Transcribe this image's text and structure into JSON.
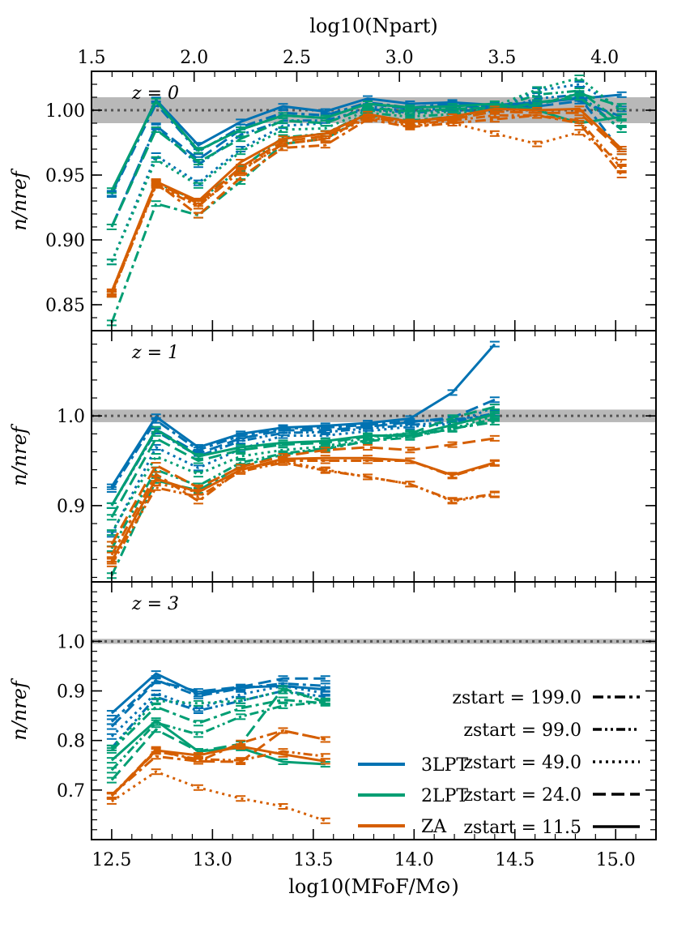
{
  "chart_data": {
    "type": "line",
    "top_axis": {
      "label": "log10(Npart)",
      "ticks": [
        "1.5",
        "2.0",
        "2.5",
        "3.0",
        "3.5",
        "4.0"
      ],
      "tick_values": [
        1.5,
        2.0,
        2.5,
        3.0,
        3.5,
        4.0
      ],
      "range": [
        1.5,
        4.25
      ]
    },
    "xlabel": "log10(MFoF/M⊙)",
    "xlim": [
      12.4,
      15.2
    ],
    "x_ticks": [
      "12.5",
      "13.0",
      "13.5",
      "14.0",
      "14.5",
      "15.0"
    ],
    "x_tick_values": [
      12.5,
      13.0,
      13.5,
      14.0,
      14.5,
      15.0
    ],
    "x": [
      12.5,
      12.72,
      12.93,
      13.14,
      13.35,
      13.56,
      13.77,
      13.98,
      14.19,
      14.4,
      14.61,
      14.82,
      15.03
    ],
    "reference_line": 1.0,
    "colors": {
      "3LPT": "#0072B2",
      "2LPT": "#009E73",
      "ZA": "#D55E00"
    },
    "panels": [
      {
        "label": "z = 0",
        "ylabel": "n/nref",
        "ylim": [
          0.83,
          1.03
        ],
        "yticks": [
          "0.85",
          "0.90",
          "0.95",
          "1.00"
        ],
        "ytick_values": [
          0.85,
          0.9,
          0.95,
          1.0
        ],
        "band": [
          0.99,
          1.01
        ],
        "series": [
          {
            "group": "3LPT",
            "zstart": "11.5",
            "values": [
              0.936,
              1.008,
              0.973,
              0.991,
              1.003,
              0.999,
              1.009,
              1.005,
              1.006,
              1.004,
              1.006,
              1.009,
              1.012
            ]
          },
          {
            "group": "3LPT",
            "zstart": "24.0",
            "values": [
              0.91,
              0.988,
              0.962,
              0.985,
              0.996,
              0.994,
              1.005,
              1.001,
              1.004,
              1.001,
              1.003,
              1.007,
              0.995
            ]
          },
          {
            "group": "3LPT",
            "zstart": "49.0",
            "values": [
              0.883,
              0.965,
              0.944,
              0.97,
              0.988,
              0.99,
              1.003,
              0.999,
              1.002,
              1.0,
              1.015,
              1.02,
              1.001
            ]
          },
          {
            "group": "3LPT",
            "zstart": "99.0",
            "values": [
              0.91,
              0.987,
              0.958,
              0.981,
              0.992,
              0.992,
              1.001,
              0.998,
              1.0,
              0.999,
              1.009,
              1.012,
              0.985
            ]
          },
          {
            "group": "3LPT",
            "zstart": "199.0",
            "values": [
              0.935,
              1.005,
              0.968,
              0.987,
              0.998,
              0.996,
              1.006,
              1.002,
              1.005,
              1.002,
              1.005,
              1.01,
              0.968
            ]
          },
          {
            "group": "2LPT",
            "zstart": "11.5",
            "values": [
              0.938,
              1.007,
              0.969,
              0.985,
              0.996,
              0.994,
              1.005,
              1.002,
              1.003,
              1.005,
              1.0,
              0.99,
              0.995
            ]
          },
          {
            "group": "2LPT",
            "zstart": "24.0",
            "values": [
              0.91,
              0.985,
              0.96,
              0.978,
              0.992,
              0.99,
              1.002,
              0.999,
              1.001,
              1.002,
              1.004,
              1.013,
              1.003
            ]
          },
          {
            "group": "2LPT",
            "zstart": "49.0",
            "values": [
              0.883,
              0.962,
              0.942,
              0.968,
              0.985,
              0.986,
              1.0,
              0.997,
              0.999,
              1.003,
              1.016,
              1.025,
              0.999
            ]
          },
          {
            "group": "2LPT",
            "zstart": "99.0",
            "values": [
              0.858,
              0.944,
              0.93,
              0.955,
              0.979,
              0.982,
              0.998,
              0.995,
              0.997,
              1.001,
              1.012,
              1.015,
              0.99
            ]
          },
          {
            "group": "2LPT",
            "zstart": "199.0",
            "values": [
              0.836,
              0.928,
              0.919,
              0.945,
              0.974,
              0.978,
              0.996,
              0.992,
              0.995,
              1.0,
              1.006,
              1.01,
              0.985
            ]
          },
          {
            "group": "ZA",
            "zstart": "11.5",
            "values": [
              0.86,
              0.945,
              0.93,
              0.96,
              0.978,
              0.982,
              0.997,
              0.991,
              0.995,
              1.001,
              1.0,
              1.001,
              0.97
            ]
          },
          {
            "group": "ZA",
            "zstart": "24.0",
            "values": [
              0.86,
              0.944,
              0.928,
              0.956,
              0.976,
              0.98,
              0.995,
              0.99,
              0.993,
              0.999,
              0.998,
              0.998,
              0.968
            ]
          },
          {
            "group": "ZA",
            "zstart": "49.0",
            "values": [
              0.858,
              0.943,
              0.926,
              0.954,
              0.974,
              0.978,
              0.994,
              0.988,
              0.99,
              0.982,
              0.974,
              0.983,
              0.96
            ]
          },
          {
            "group": "ZA",
            "zstart": "99.0",
            "values": [
              0.858,
              0.942,
              0.926,
              0.953,
              0.974,
              0.978,
              0.995,
              0.989,
              0.992,
              0.996,
              0.996,
              0.992,
              0.955
            ]
          },
          {
            "group": "ZA",
            "zstart": "199.0",
            "values": [
              0.859,
              0.944,
              0.919,
              0.948,
              0.971,
              0.973,
              0.993,
              0.987,
              0.99,
              0.993,
              0.996,
              0.99,
              0.95
            ]
          }
        ]
      },
      {
        "label": "z = 1",
        "ylabel": "n/nref",
        "ylim": [
          0.815,
          1.095
        ],
        "yticks": [
          "0.9",
          "1.0"
        ],
        "ytick_values": [
          0.9,
          1.0
        ],
        "band": [
          0.993,
          1.007
        ],
        "series": [
          {
            "group": "3LPT",
            "zstart": "11.5",
            "values": [
              0.921,
              0.999,
              0.965,
              0.98,
              0.987,
              0.989,
              0.992,
              0.997,
              1.026,
              1.08
            ]
          },
          {
            "group": "3LPT",
            "zstart": "24.0",
            "values": [
              0.9,
              0.985,
              0.958,
              0.975,
              0.984,
              0.984,
              0.988,
              0.993,
              0.998,
              1.018
            ]
          },
          {
            "group": "3LPT",
            "zstart": "49.0",
            "values": [
              0.868,
              0.965,
              0.942,
              0.963,
              0.978,
              0.978,
              0.983,
              0.988,
              0.991,
              1.01
            ]
          },
          {
            "group": "3LPT",
            "zstart": "99.0",
            "values": [
              0.9,
              0.983,
              0.955,
              0.972,
              0.981,
              0.982,
              0.986,
              0.99,
              0.993,
              1.003
            ]
          },
          {
            "group": "3LPT",
            "zstart": "199.0",
            "values": [
              0.918,
              0.995,
              0.962,
              0.978,
              0.986,
              0.987,
              0.99,
              0.994,
              0.996,
              1.0
            ]
          },
          {
            "group": "2LPT",
            "zstart": "11.5",
            "values": [
              0.9,
              0.985,
              0.955,
              0.965,
              0.97,
              0.972,
              0.978,
              0.978,
              0.99,
              1.002
            ]
          },
          {
            "group": "2LPT",
            "zstart": "24.0",
            "values": [
              0.887,
              0.975,
              0.95,
              0.962,
              0.968,
              0.97,
              0.977,
              0.98,
              0.998,
              1.01
            ]
          },
          {
            "group": "2LPT",
            "zstart": "49.0",
            "values": [
              0.87,
              0.955,
              0.935,
              0.955,
              0.962,
              0.966,
              0.976,
              0.981,
              0.986,
              1.0
            ]
          },
          {
            "group": "2LPT",
            "zstart": "99.0",
            "values": [
              0.852,
              0.94,
              0.922,
              0.948,
              0.958,
              0.964,
              0.973,
              0.978,
              0.985,
              0.997
            ]
          },
          {
            "group": "2LPT",
            "zstart": "199.0",
            "values": [
              0.822,
              0.928,
              0.917,
              0.944,
              0.957,
              0.963,
              0.972,
              0.976,
              0.986,
              0.993
            ]
          },
          {
            "group": "ZA",
            "zstart": "11.5",
            "values": [
              0.838,
              0.93,
              0.915,
              0.94,
              0.952,
              0.953,
              0.953,
              0.95,
              0.934,
              0.948
            ]
          },
          {
            "group": "ZA",
            "zstart": "24.0",
            "values": [
              0.857,
              0.945,
              0.92,
              0.943,
              0.955,
              0.962,
              0.965,
              0.962,
              0.968,
              0.975
            ]
          },
          {
            "group": "ZA",
            "zstart": "49.0",
            "values": [
              0.84,
              0.925,
              0.915,
              0.94,
              0.95,
              0.94,
              0.932,
              0.924,
              0.905,
              0.912
            ]
          },
          {
            "group": "ZA",
            "zstart": "99.0",
            "values": [
              0.835,
              0.92,
              0.91,
              0.938,
              0.948,
              0.939,
              0.932,
              0.924,
              0.906,
              0.913
            ]
          },
          {
            "group": "ZA",
            "zstart": "199.0",
            "values": [
              0.845,
              0.935,
              0.905,
              0.94,
              0.95,
              0.95,
              0.95,
              0.95,
              0.933,
              0.947
            ]
          }
        ]
      },
      {
        "label": "z = 3",
        "ylabel": "n/nref",
        "ylim": [
          0.6,
          1.12
        ],
        "yticks": [
          "0.7",
          "0.8",
          "0.9",
          "1.0"
        ],
        "ytick_values": [
          0.7,
          0.8,
          0.9,
          1.0
        ],
        "band": [
          0.995,
          1.005
        ],
        "series": [
          {
            "group": "3LPT",
            "zstart": "11.5",
            "values": [
              0.855,
              0.935,
              0.894,
              0.907,
              0.91,
              0.903
            ]
          },
          {
            "group": "3LPT",
            "zstart": "24.0",
            "values": [
              0.828,
              0.92,
              0.899,
              0.908,
              0.925,
              0.925
            ]
          },
          {
            "group": "3LPT",
            "zstart": "49.0",
            "values": [
              0.808,
              0.896,
              0.864,
              0.893,
              0.91,
              0.895
            ]
          },
          {
            "group": "3LPT",
            "zstart": "99.0",
            "values": [
              0.785,
              0.888,
              0.86,
              0.88,
              0.9,
              0.888
            ]
          },
          {
            "group": "3LPT",
            "zstart": "199.0",
            "values": [
              0.838,
              0.922,
              0.89,
              0.905,
              0.915,
              0.91
            ]
          },
          {
            "group": "2LPT",
            "zstart": "11.5",
            "values": [
              0.76,
              0.84,
              0.778,
              0.785,
              0.757,
              0.752
            ]
          },
          {
            "group": "2LPT",
            "zstart": "24.0",
            "values": [
              0.72,
              0.822,
              0.778,
              0.793,
              0.905,
              0.877
            ]
          },
          {
            "group": "2LPT",
            "zstart": "49.0",
            "values": [
              0.785,
              0.88,
              0.875,
              0.88,
              0.9,
              0.88
            ]
          },
          {
            "group": "2LPT",
            "zstart": "99.0",
            "values": [
              0.74,
              0.836,
              0.812,
              0.848,
              0.87,
              0.878
            ]
          },
          {
            "group": "2LPT",
            "zstart": "199.0",
            "values": [
              0.78,
              0.868,
              0.835,
              0.865,
              0.882,
              0.875
            ]
          },
          {
            "group": "ZA",
            "zstart": "11.5",
            "values": [
              0.688,
              0.78,
              0.77,
              0.788,
              0.772,
              0.758
            ]
          },
          {
            "group": "ZA",
            "zstart": "24.0",
            "values": [
              0.688,
              0.782,
              0.758,
              0.757,
              0.82,
              0.802
            ]
          },
          {
            "group": "ZA",
            "zstart": "49.0",
            "values": [
              0.677,
              0.737,
              0.705,
              0.683,
              0.667,
              0.638
            ]
          },
          {
            "group": "ZA",
            "zstart": "99.0",
            "values": [
              0.69,
              0.778,
              0.762,
              0.76,
              0.778,
              0.768
            ]
          },
          {
            "group": "ZA",
            "zstart": "199.0",
            "values": [
              0.69,
              0.768,
              0.758,
              0.795,
              0.82,
              0.802
            ]
          }
        ]
      }
    ],
    "legend_colors": {
      "placement": "bottom-center of lowest panel",
      "entries": [
        "3LPT",
        "2LPT",
        "ZA"
      ]
    },
    "legend_styles": {
      "placement": "bottom-right of lowest panel",
      "entries": [
        {
          "label": "zstart = 199.0",
          "dash": "dash-dot"
        },
        {
          "label": "zstart = 99.0",
          "dash": "dash-dot-dot"
        },
        {
          "label": "zstart = 49.0",
          "dash": "dotted"
        },
        {
          "label": "zstart = 24.0",
          "dash": "dashed"
        },
        {
          "label": "zstart = 11.5",
          "dash": "solid"
        }
      ]
    }
  }
}
